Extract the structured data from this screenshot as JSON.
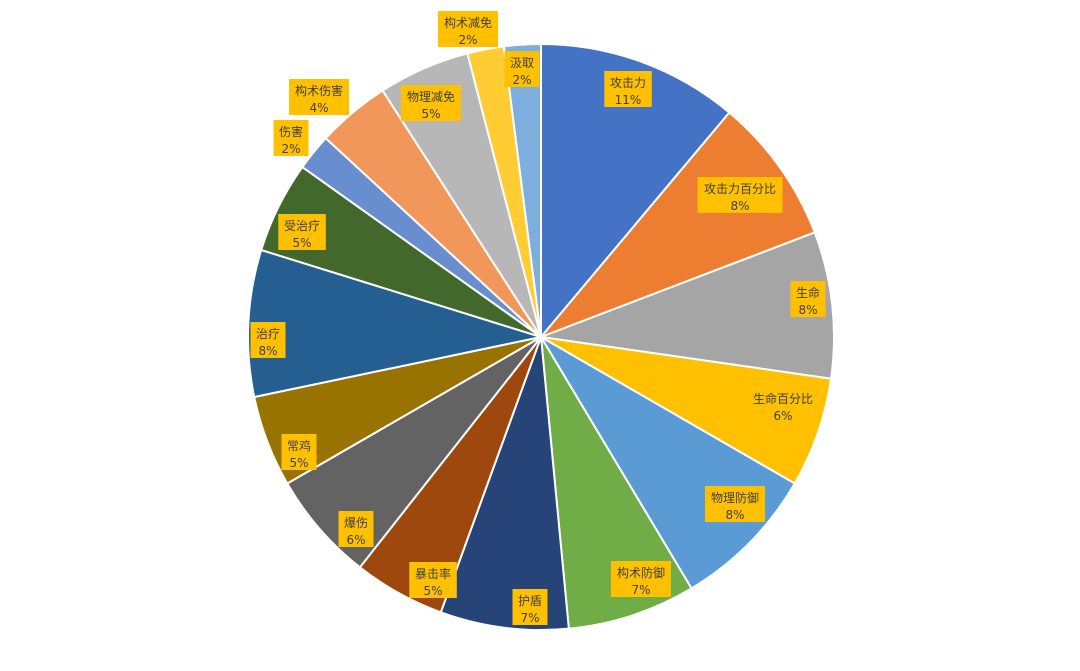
{
  "chart_data": {
    "type": "pie",
    "title": "",
    "start_angle_deg": 0,
    "direction": "clockwise",
    "label_box_color": "#ffc000",
    "label_text_color": "#404040",
    "slices": [
      {
        "label": "攻击力",
        "value": 11,
        "pct_label": "11%",
        "color": "#4472c4"
      },
      {
        "label": "攻击力百分比",
        "value": 8,
        "pct_label": "8%",
        "color": "#ed7d31"
      },
      {
        "label": "生命",
        "value": 8,
        "pct_label": "8%",
        "color": "#a5a5a5"
      },
      {
        "label": "生命百分比",
        "value": 6,
        "pct_label": "6%",
        "color": "#ffc000"
      },
      {
        "label": "物理防御",
        "value": 8,
        "pct_label": "8%",
        "color": "#5b9bd5"
      },
      {
        "label": "构术防御",
        "value": 7,
        "pct_label": "7%",
        "color": "#70ad47"
      },
      {
        "label": "护盾",
        "value": 7,
        "pct_label": "7%",
        "color": "#264478"
      },
      {
        "label": "暴击率",
        "value": 5,
        "pct_label": "5%",
        "color": "#9e480e"
      },
      {
        "label": "爆伤",
        "value": 6,
        "pct_label": "6%",
        "color": "#636363"
      },
      {
        "label": "常鸡",
        "value": 5,
        "pct_label": "5%",
        "color": "#997300"
      },
      {
        "label": "治疗",
        "value": 8,
        "pct_label": "8%",
        "color": "#255e91"
      },
      {
        "label": "受治疗",
        "value": 5,
        "pct_label": "5%",
        "color": "#43682b"
      },
      {
        "label": "伤害",
        "value": 2,
        "pct_label": "2%",
        "color": "#698ed0"
      },
      {
        "label": "构术伤害",
        "value": 4,
        "pct_label": "4%",
        "color": "#f1975a"
      },
      {
        "label": "物理减免",
        "value": 5,
        "pct_label": "5%",
        "color": "#b7b7b7"
      },
      {
        "label": "构术减免",
        "value": 2,
        "pct_label": "2%",
        "color": "#ffcd33"
      },
      {
        "label": "汲取",
        "value": 2,
        "pct_label": "2%",
        "color": "#7cafdd"
      }
    ]
  }
}
